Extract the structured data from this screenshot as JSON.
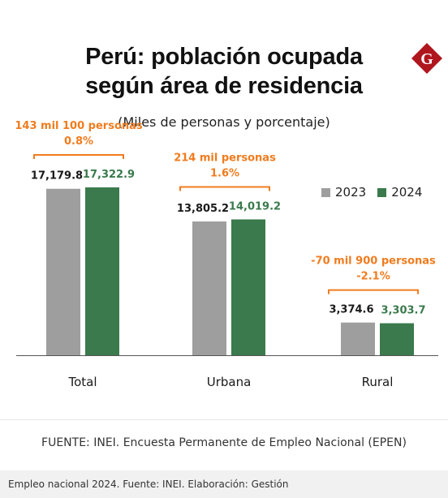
{
  "header": {
    "title_line1": "Perú: población ocupada",
    "title_line2": "según área de residencia",
    "subtitle": "(Miles de personas y porcentaje)",
    "logo_letter": "G"
  },
  "colors": {
    "series_2023": "#9e9e9e",
    "series_2024": "#3a7a4c",
    "annotation": "#f07c1e",
    "logo": "#b0161e"
  },
  "chart_data": {
    "type": "bar",
    "categories": [
      "Total",
      "Urbana",
      "Rural"
    ],
    "series": [
      {
        "name": "2023",
        "values": [
          17179.8,
          13805.2,
          3374.6
        ],
        "labels": [
          "17,179.8",
          "13,805.2",
          "3,374.6"
        ]
      },
      {
        "name": "2024",
        "values": [
          17322.9,
          14019.2,
          3303.7
        ],
        "labels": [
          "17,322.9",
          "14,019.2",
          "3,303.7"
        ]
      }
    ],
    "annotations": [
      {
        "category": "Total",
        "line1": "143 mil 100 personas",
        "line2": "0.8%"
      },
      {
        "category": "Urbana",
        "line1": "214 mil personas",
        "line2": "1.6%"
      },
      {
        "category": "Rural",
        "line1": "-70 mil 900 personas",
        "line2": "-2.1%"
      }
    ],
    "ylim": [
      0,
      19000
    ],
    "legend_position": "top-right",
    "grid": false
  },
  "source": "FUENTE: INEI. Encuesta Permanente de Empleo Nacional (EPEN)",
  "footer": "Empleo nacional 2024. Fuente: INEI. Elaboración: Gestión"
}
